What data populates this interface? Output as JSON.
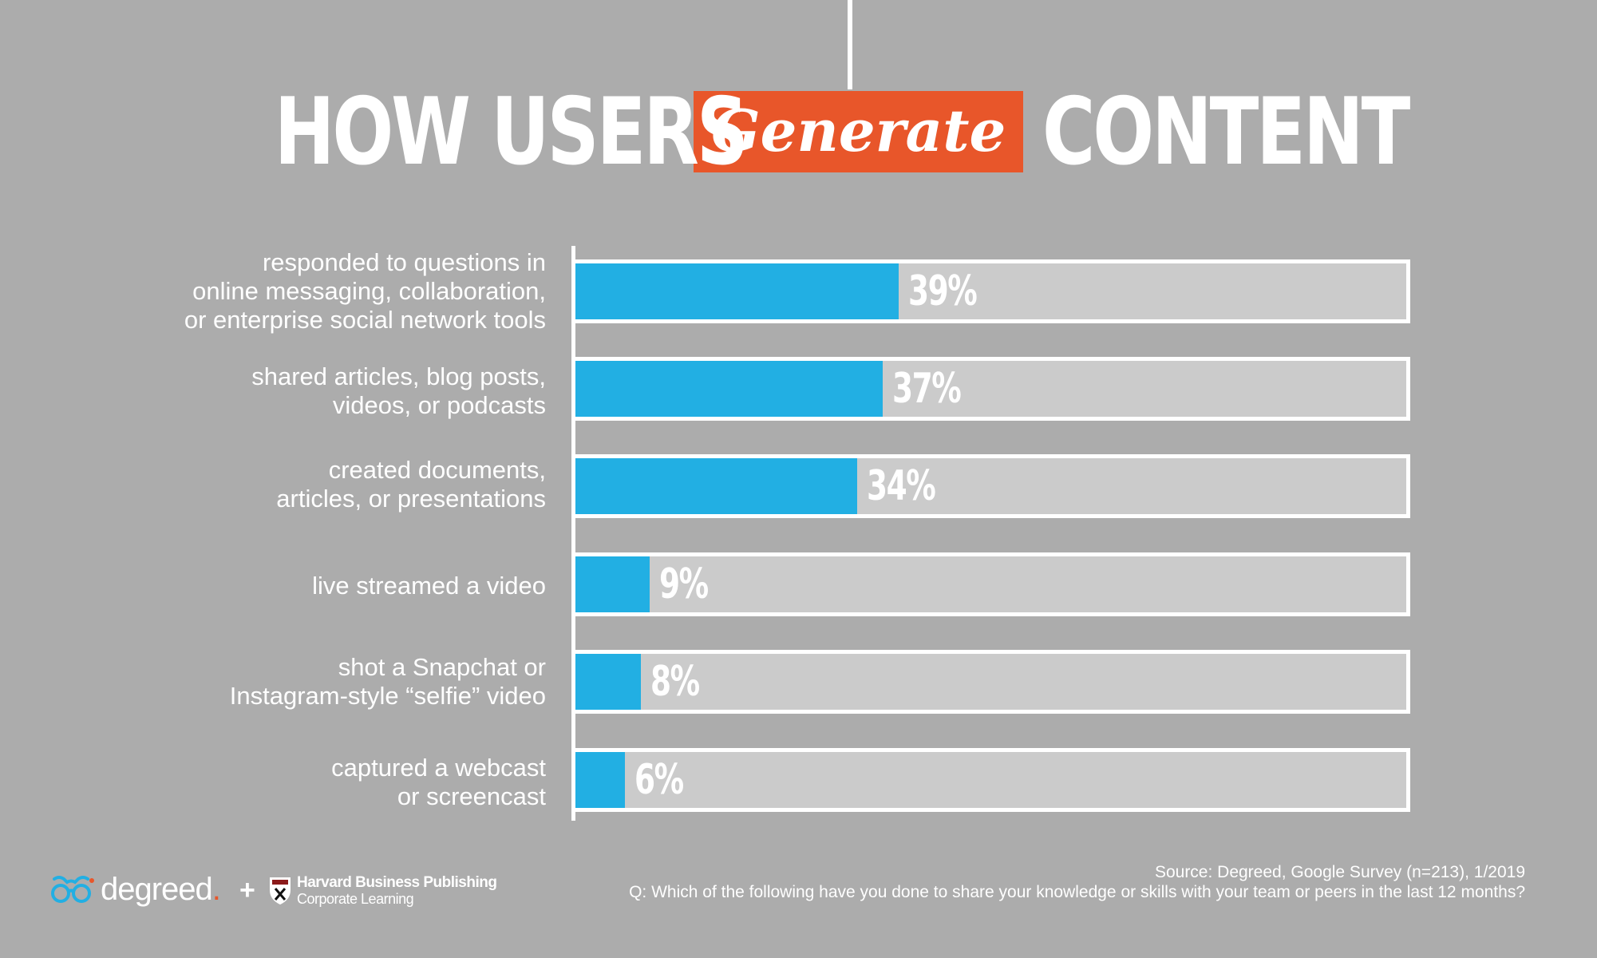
{
  "header": {
    "title_left": "HOW USERS",
    "title_highlight": "Generate",
    "title_right": "CONTENT"
  },
  "colors": {
    "background": "#acacac",
    "bar_fill": "#22afe3",
    "bar_track": "#cbcbcb",
    "highlight": "#e8562a"
  },
  "chart_data": {
    "type": "bar",
    "orientation": "horizontal",
    "categories": [
      "responded to questions in\nonline messaging, collaboration,\nor enterprise social network tools",
      "shared articles, blog posts,\nvideos, or podcasts",
      "created documents,\narticles, or presentations",
      "live streamed a video",
      "shot a Snapchat or\nInstagram-style  “selfie” video",
      "captured a webcast\nor screencast"
    ],
    "values": [
      39,
      37,
      34,
      9,
      8,
      6
    ],
    "value_labels": [
      "39%",
      "37%",
      "34%",
      "9%",
      "8%",
      "6%"
    ],
    "xlim": [
      0,
      100
    ],
    "title": "HOW USERS Generate CONTENT"
  },
  "footer": {
    "source": "Source: Degreed, Google Survey (n=213), 1/2019",
    "question": "Q: Which of the following have you done to share your knowledge or skills with your team or peers in the last 12 months?",
    "degreed_logo_text": "degreed",
    "degreed_logo_dot": ".",
    "plus": "+",
    "hbp_line1": "Harvard Business Publishing",
    "hbp_line2": "Corporate Learning",
    "degreed_icon": "glasses-icon",
    "hbp_icon": "shield-icon"
  }
}
